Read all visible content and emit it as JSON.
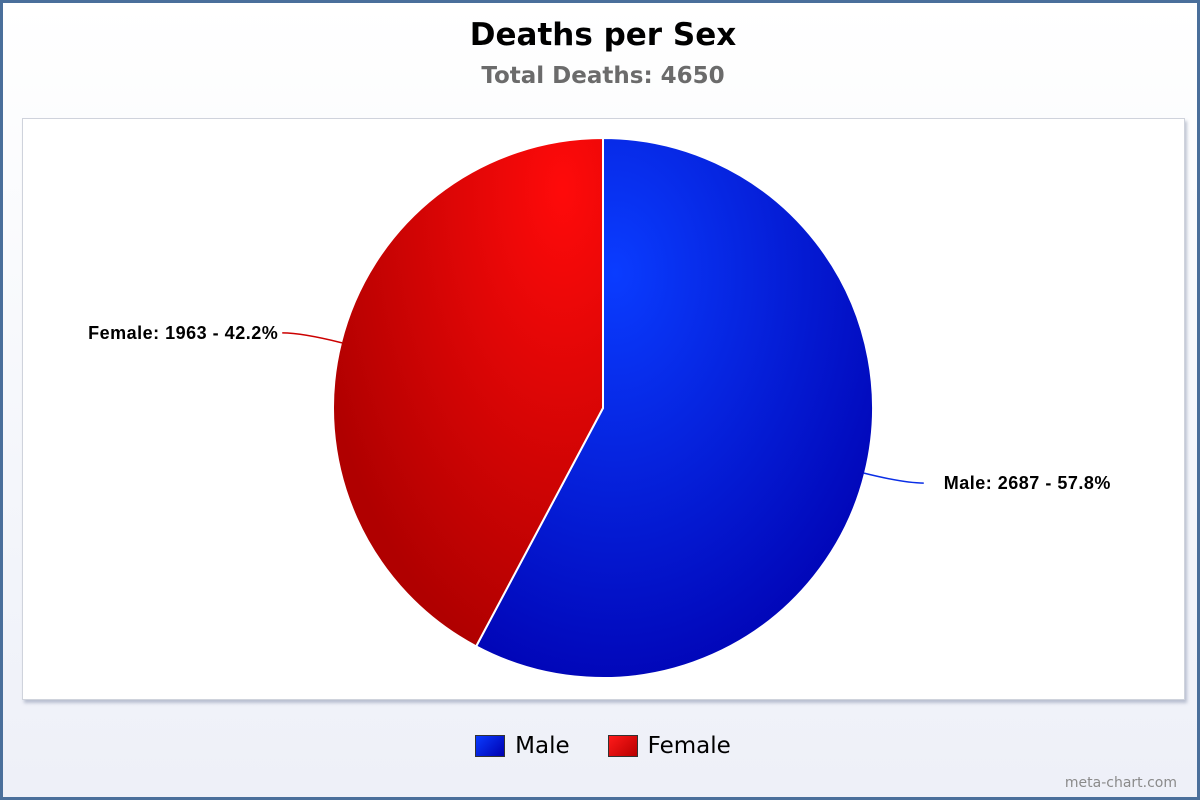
{
  "chart_data": {
    "type": "pie",
    "title": "Deaths per Sex",
    "subtitle": "Total Deaths: 4650",
    "total": 4650,
    "slices": [
      {
        "name": "Male",
        "value": 2687,
        "percent": 57.8,
        "label": "Male: 2687  - 57.8%",
        "color": "#0a2ee6"
      },
      {
        "name": "Female",
        "value": 1963,
        "percent": 42.2,
        "label": "Female: 1963 - 42.2%",
        "color": "#e00000"
      }
    ],
    "legend": {
      "position": "bottom-center",
      "items": [
        "Male",
        "Female"
      ]
    }
  },
  "credit": "meta-chart.com"
}
